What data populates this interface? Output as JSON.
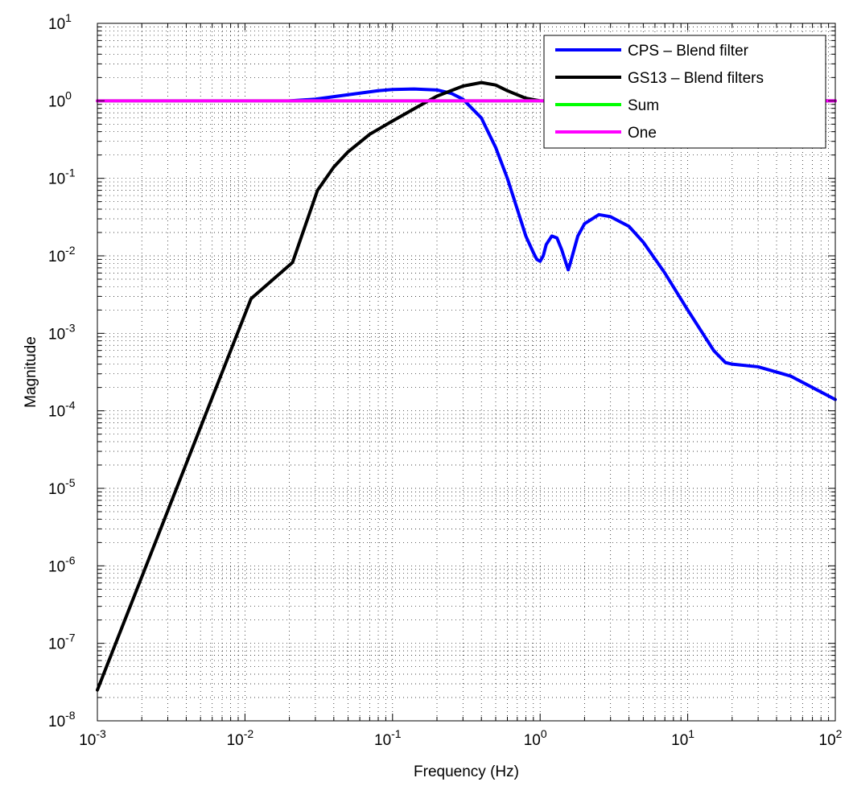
{
  "chart_data": {
    "type": "line",
    "title": "",
    "xlabel": "Frequency (Hz)",
    "ylabel": "Magnitude",
    "xscale": "log",
    "yscale": "log",
    "xlim": [
      0.001,
      100
    ],
    "ylim": [
      1e-08,
      10
    ],
    "grid": "major and minor, dotted",
    "legend_position": "top-right",
    "x_ticks": [
      {
        "base": "10",
        "exp": "-3"
      },
      {
        "base": "10",
        "exp": "-2"
      },
      {
        "base": "10",
        "exp": "-1"
      },
      {
        "base": "10",
        "exp": "0"
      },
      {
        "base": "10",
        "exp": "1"
      },
      {
        "base": "10",
        "exp": "2"
      }
    ],
    "y_ticks": [
      {
        "base": "10",
        "exp": "-8"
      },
      {
        "base": "10",
        "exp": "-7"
      },
      {
        "base": "10",
        "exp": "-6"
      },
      {
        "base": "10",
        "exp": "-5"
      },
      {
        "base": "10",
        "exp": "-4"
      },
      {
        "base": "10",
        "exp": "-3"
      },
      {
        "base": "10",
        "exp": "-2"
      },
      {
        "base": "10",
        "exp": "-1"
      },
      {
        "base": "10",
        "exp": "0"
      },
      {
        "base": "10",
        "exp": "1"
      }
    ],
    "series": [
      {
        "name": "CPS – Blend filter",
        "color": "#0000ff",
        "x": [
          0.02,
          0.03,
          0.05,
          0.08,
          0.1,
          0.14,
          0.2,
          0.25,
          0.3,
          0.4,
          0.5,
          0.6,
          0.7,
          0.8,
          0.9,
          0.95,
          1.0,
          1.05,
          1.1,
          1.2,
          1.3,
          1.4,
          1.5,
          1.55,
          1.6,
          1.8,
          2.0,
          2.5,
          3.0,
          4.0,
          5.0,
          7.0,
          10.0,
          15.0,
          18.0,
          20.0,
          30.0,
          50.0,
          100.0
        ],
        "y": [
          1.0,
          1.05,
          1.2,
          1.35,
          1.4,
          1.42,
          1.38,
          1.25,
          1.05,
          0.6,
          0.25,
          0.1,
          0.04,
          0.018,
          0.011,
          0.009,
          0.0085,
          0.01,
          0.014,
          0.018,
          0.017,
          0.012,
          0.008,
          0.0066,
          0.008,
          0.018,
          0.026,
          0.034,
          0.032,
          0.024,
          0.015,
          0.006,
          0.002,
          0.0006,
          0.00042,
          0.0004,
          0.00037,
          0.00028,
          0.00014
        ]
      },
      {
        "name": "GS13 – Blend filters",
        "color": "#000000",
        "x": [
          0.001,
          0.011,
          0.021,
          0.031,
          0.04,
          0.05,
          0.07,
          0.1,
          0.15,
          0.2,
          0.3,
          0.4,
          0.5,
          0.6,
          0.8,
          1.0,
          2.0,
          100.0
        ],
        "y": [
          2.5e-08,
          0.0028,
          0.0082,
          0.07,
          0.14,
          0.22,
          0.37,
          0.55,
          0.85,
          1.15,
          1.55,
          1.72,
          1.6,
          1.35,
          1.08,
          1.0,
          1.0,
          1.0
        ]
      },
      {
        "name": "Sum",
        "color": "#00ff00",
        "x": [
          0.001,
          100
        ],
        "y": [
          1,
          1
        ]
      },
      {
        "name": "One",
        "color": "#ff00ff",
        "x": [
          0.001,
          100
        ],
        "y": [
          1,
          1
        ]
      }
    ]
  }
}
